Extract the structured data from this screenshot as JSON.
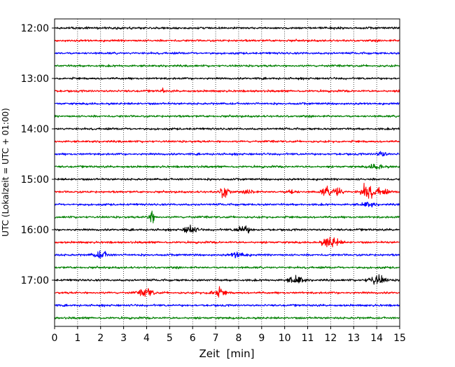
{
  "chart_data": {
    "type": "line",
    "title": "",
    "xlabel": "Zeit  [min]",
    "ylabel": "UTC (Lokalzeit = UTC + 01:00)",
    "xlim": [
      0,
      15
    ],
    "x_ticks": [
      0,
      1,
      2,
      3,
      4,
      5,
      6,
      7,
      8,
      9,
      10,
      11,
      12,
      13,
      14,
      15
    ],
    "x_tick_labels": [
      "0",
      "1",
      "2",
      "3",
      "4",
      "5",
      "6",
      "7",
      "8",
      "9",
      "10",
      "11",
      "12",
      "13",
      "14",
      "15"
    ],
    "vertical_gridlines": "dotted",
    "trace_color_cycle": [
      "#000000",
      "#ff0000",
      "#0000ff",
      "#008000"
    ],
    "traces_per_hour": 4,
    "trace_start_times": [
      "12:00",
      "12:15",
      "12:30",
      "12:45",
      "13:00",
      "13:15",
      "13:30",
      "13:45",
      "14:00",
      "14:15",
      "14:30",
      "14:45",
      "15:00",
      "15:15",
      "15:30",
      "15:45",
      "16:00",
      "16:15",
      "16:30",
      "16:45",
      "17:00",
      "17:15",
      "17:30",
      "17:45"
    ],
    "y_tick_labels": [
      "12:00",
      "13:00",
      "14:00",
      "15:00",
      "16:00",
      "17:00"
    ],
    "legend": "none",
    "events": [
      {
        "trace": "13:15",
        "x": 4.7,
        "amplitude": 0.45,
        "width": 0.05
      },
      {
        "trace": "14:30",
        "x": 14.2,
        "amplitude": 0.4,
        "width": 0.2
      },
      {
        "trace": "14:45",
        "x": 14.0,
        "amplitude": 0.35,
        "width": 0.3
      },
      {
        "trace": "15:15",
        "x": 7.4,
        "amplitude": 1.0,
        "width": 0.18
      },
      {
        "trace": "15:15",
        "x": 8.5,
        "amplitude": 0.3,
        "width": 0.2
      },
      {
        "trace": "15:15",
        "x": 10.3,
        "amplitude": 0.3,
        "width": 0.2
      },
      {
        "trace": "15:15",
        "x": 11.8,
        "amplitude": 0.55,
        "width": 0.2
      },
      {
        "trace": "15:15",
        "x": 12.3,
        "amplitude": 0.7,
        "width": 0.2
      },
      {
        "trace": "15:15",
        "x": 13.6,
        "amplitude": 1.1,
        "width": 0.25
      },
      {
        "trace": "15:15",
        "x": 14.2,
        "amplitude": 0.5,
        "width": 0.25
      },
      {
        "trace": "15:30",
        "x": 13.6,
        "amplitude": 0.3,
        "width": 0.3
      },
      {
        "trace": "15:45",
        "x": 4.2,
        "amplitude": 0.9,
        "width": 0.15
      },
      {
        "trace": "16:00",
        "x": 5.9,
        "amplitude": 0.55,
        "width": 0.25
      },
      {
        "trace": "16:00",
        "x": 8.2,
        "amplitude": 0.5,
        "width": 0.3
      },
      {
        "trace": "16:15",
        "x": 12.0,
        "amplitude": 0.7,
        "width": 0.35
      },
      {
        "trace": "16:30",
        "x": 2.0,
        "amplitude": 0.45,
        "width": 0.3
      },
      {
        "trace": "16:30",
        "x": 8.0,
        "amplitude": 0.4,
        "width": 0.3
      },
      {
        "trace": "17:00",
        "x": 10.5,
        "amplitude": 0.6,
        "width": 0.3
      },
      {
        "trace": "17:00",
        "x": 14.0,
        "amplitude": 0.65,
        "width": 0.35
      },
      {
        "trace": "17:15",
        "x": 4.0,
        "amplitude": 0.55,
        "width": 0.3
      },
      {
        "trace": "17:15",
        "x": 7.1,
        "amplitude": 0.55,
        "width": 0.3
      }
    ]
  }
}
